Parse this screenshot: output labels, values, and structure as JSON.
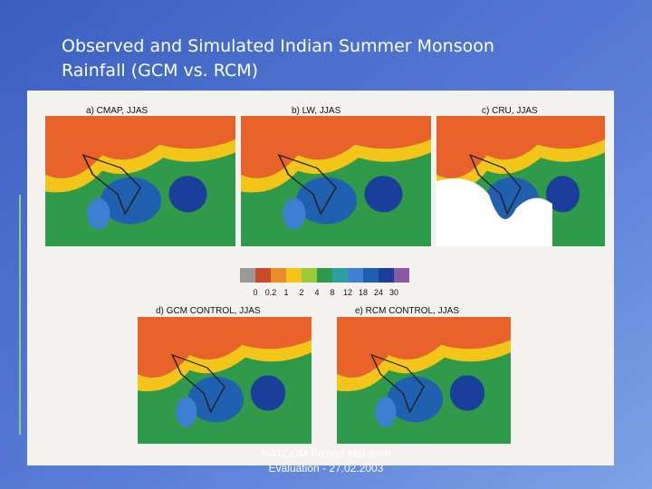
{
  "slide": {
    "title": [
      "Observed and Simulated Indian Summer Monsoon",
      "Rainfall (GCM vs. RCM)"
    ],
    "panels": [
      "a) CMAP, JJAS",
      "b) LW, JJAS",
      "c) CRU, JJAS",
      "d) GCM CONTROL, JJAS",
      "e) RCM CONTROL, JJAS"
    ],
    "colorbar": {
      "labels": [
        0,
        0.2,
        1,
        2,
        4,
        8,
        12,
        18,
        24,
        30
      ]
    },
    "footer": [
      "NATCOM Project Mid-term",
      "Evaluation - 27.02.2003"
    ]
  }
}
